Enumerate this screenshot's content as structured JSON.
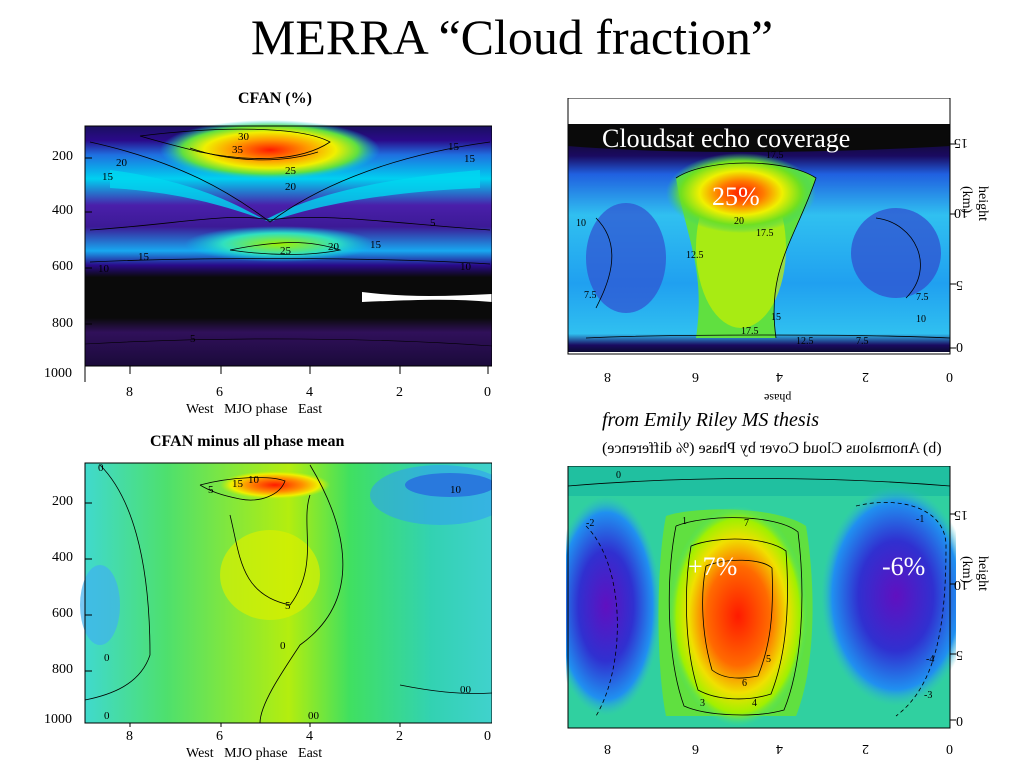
{
  "slide_title": "MERRA “Cloud fraction”",
  "caption": "from Emily Riley MS thesis",
  "chart_data": [
    {
      "type": "heatmap",
      "title": "CFAN (%)",
      "xlabel": "West   MJO phase   East",
      "x_ticks": [
        "8",
        "6",
        "4",
        "2",
        "0"
      ],
      "y_ticks": [
        "200",
        "400",
        "600",
        "800",
        "1000"
      ],
      "xlim": [
        8.8,
        0
      ],
      "ylim": [
        1000,
        80
      ],
      "contour_labels": [
        "35",
        "30",
        "25",
        "20",
        "15",
        "10",
        "5",
        "25",
        "20",
        "15",
        "15",
        "10",
        "10",
        "15",
        "20",
        "25",
        "5",
        "5"
      ]
    },
    {
      "type": "heatmap",
      "title": "CFAN minus all phase mean",
      "xlabel": "West   MJO phase   East",
      "x_ticks": [
        "8",
        "6",
        "4",
        "2",
        "0"
      ],
      "y_ticks": [
        "200",
        "400",
        "600",
        "800",
        "1000"
      ],
      "xlim": [
        8.8,
        0
      ],
      "ylim": [
        1000,
        80
      ],
      "contour_labels": [
        "15",
        "10",
        "5",
        "5",
        "0",
        "0",
        "0",
        "10",
        "00",
        "00",
        "0"
      ]
    },
    {
      "type": "heatmap",
      "overlay_label": "Cloudsat echo coverage",
      "peak_label": "25%",
      "xlabel": "phase",
      "x_ticks": [
        "8",
        "6",
        "4",
        "2",
        "0"
      ],
      "y_ticks": [
        "0",
        "5",
        "10",
        "15"
      ],
      "ylabel": "height (km)",
      "contour_labels": [
        "17.5",
        "20",
        "17.5",
        "10",
        "7.5",
        "7.5",
        "10",
        "12.5",
        "15",
        "17.5",
        "12.5",
        "7.5"
      ]
    },
    {
      "type": "heatmap",
      "title": "(b) Anomalous Cloud Cover by Phase (% difference)",
      "positive_label": "+7%",
      "negative_label": "-6%",
      "x_ticks": [
        "8",
        "6",
        "4",
        "2",
        "0"
      ],
      "y_ticks": [
        "0",
        "5",
        "10",
        "15"
      ],
      "ylabel": "height (km)",
      "contour_labels": [
        "0",
        "1",
        "3",
        "4",
        "5",
        "6",
        "7",
        "-1",
        "-2",
        "-3",
        "-4"
      ]
    }
  ]
}
